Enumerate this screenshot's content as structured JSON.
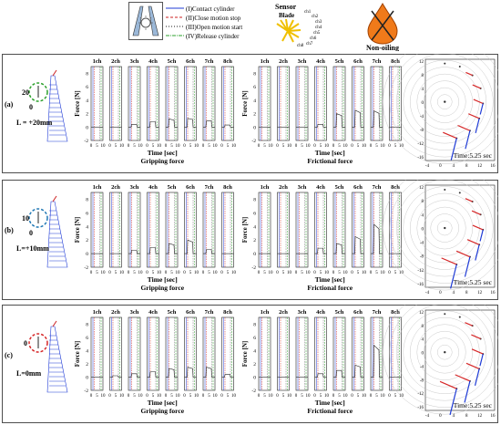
{
  "legend": {
    "entries": [
      "(I)Contact cylinder",
      "(II)Close motion stop",
      "(III)Open motion start",
      "(IV)Release cylinder"
    ],
    "colors": [
      "#1f3bd6",
      "#cc2222",
      "#1a1a1a",
      "#2ca02c"
    ],
    "sensor_title": "Sensor",
    "blade_label": "Blade",
    "sensor_channels": [
      "ch1",
      "ch2",
      "ch3",
      "ch4",
      "ch5",
      "ch6",
      "ch7",
      "ch8"
    ],
    "non_oiling": "Non-oiling"
  },
  "panels": [
    {
      "label": "(a)",
      "offset": "20",
      "zero": "0",
      "length": "L = +20mm",
      "circle_color": "#2ca02c",
      "time": "Time:5.25 sec"
    },
    {
      "label": "(b)",
      "offset": "10",
      "zero": "0",
      "length": "L=+10mm",
      "circle_color": "#1f77b4",
      "time": "Time:5.25 sec"
    },
    {
      "label": "(c)",
      "offset": "",
      "zero": "0",
      "length": "L=0mm",
      "circle_color": "#d62728",
      "time": "Time:5.25 sec"
    }
  ],
  "chart_data": [
    {
      "type": "line",
      "panel": "(a)",
      "channels": [
        "1ch",
        "2ch",
        "3ch",
        "4ch",
        "5ch",
        "6ch",
        "7ch",
        "8ch"
      ],
      "x_ticks": [
        "0",
        "5",
        "10"
      ],
      "y_ticks": [
        "-2",
        "0",
        "2",
        "4",
        "6",
        "8"
      ],
      "ylim": [
        -2,
        9
      ],
      "ylabel": "Force [N]",
      "xlabel": "Time [sec]",
      "gripping": {
        "title": "Gripping force",
        "peaks": [
          0,
          0,
          0.4,
          0.8,
          1.2,
          1.3,
          0.9,
          0.3
        ]
      },
      "friction": {
        "title": "Frictional force",
        "peaks": [
          0,
          0,
          0,
          0.4,
          2.0,
          2.5,
          2.4,
          0
        ]
      },
      "polar": {
        "ticks_x": [
          "-4",
          "0",
          "4",
          "8",
          "12",
          "16"
        ],
        "ticks_y": [
          "12",
          "8",
          "4",
          "0",
          "-4",
          "-8",
          "-12",
          "-16"
        ]
      }
    },
    {
      "type": "line",
      "panel": "(b)",
      "channels": [
        "1ch",
        "2ch",
        "3ch",
        "4ch",
        "5ch",
        "6ch",
        "7ch",
        "8ch"
      ],
      "x_ticks": [
        "0",
        "5",
        "10"
      ],
      "y_ticks": [
        "-2",
        "0",
        "2",
        "4",
        "6",
        "8"
      ],
      "ylim": [
        -2,
        9
      ],
      "ylabel": "Force [N]",
      "xlabel": "Time [sec]",
      "gripping": {
        "title": "Gripping force",
        "peaks": [
          0,
          0,
          0.5,
          0.9,
          1.5,
          2.0,
          0.6,
          0
        ]
      },
      "friction": {
        "title": "Frictional force",
        "peaks": [
          0,
          0,
          0,
          0.8,
          1.5,
          2.5,
          4.3,
          0
        ]
      },
      "polar": {
        "ticks_x": [
          "-4",
          "0",
          "4",
          "8",
          "12",
          "16"
        ],
        "ticks_y": [
          "12",
          "8",
          "4",
          "0",
          "-4",
          "-8",
          "-12",
          "-16"
        ]
      }
    },
    {
      "type": "line",
      "panel": "(c)",
      "channels": [
        "1ch",
        "2ch",
        "3ch",
        "4ch",
        "5ch",
        "6ch",
        "7ch",
        "8ch"
      ],
      "x_ticks": [
        "0",
        "5",
        "10"
      ],
      "y_ticks": [
        "-2",
        "0",
        "2",
        "4",
        "6",
        "8"
      ],
      "ylim": [
        -2,
        9
      ],
      "ylabel": "Force [N]",
      "xlabel": "Time [sec]",
      "gripping": {
        "title": "Gripping force",
        "peaks": [
          0,
          0.2,
          0.5,
          0.8,
          1.3,
          1.5,
          1.5,
          0.4
        ]
      },
      "friction": {
        "title": "Frictional force",
        "peaks": [
          0,
          0,
          0,
          0.5,
          1.0,
          1.8,
          4.8,
          0
        ]
      },
      "polar": {
        "ticks_x": [
          "-4",
          "0",
          "4",
          "8",
          "12",
          "16"
        ],
        "ticks_y": [
          "12",
          "8",
          "4",
          "0",
          "-4",
          "-8",
          "-12",
          "-16"
        ]
      }
    }
  ]
}
